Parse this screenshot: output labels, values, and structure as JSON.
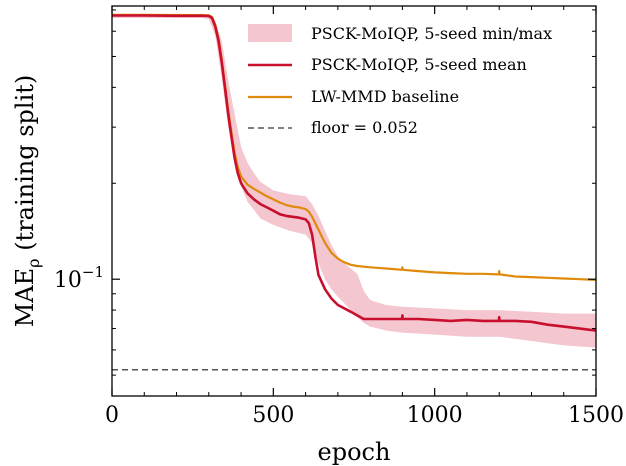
{
  "chart_data": {
    "type": "line",
    "xlabel": "epoch",
    "ylabel": "MAEρ (training split)",
    "ylabel_main": "MAE",
    "ylabel_sub": "ρ",
    "ylabel_rest": " (training split)",
    "xlim": [
      0,
      1500
    ],
    "ylim": [
      0.043,
      0.72
    ],
    "yscale": "log",
    "xticks": [
      0,
      500,
      1000,
      1500
    ],
    "xtick_labels": [
      "0",
      "500",
      "1000",
      "1500"
    ],
    "yticks_major": [
      0.1
    ],
    "ytick_major_base": "10",
    "ytick_major_exp": "−1",
    "grid": false,
    "legend_position": "top-right",
    "series": [
      {
        "name": "PSCK-MoIQP, 5-seed min/max",
        "kind": "band",
        "color": "#f4c6cf",
        "x": [
          0,
          100,
          200,
          280,
          300,
          320,
          340,
          360,
          380,
          400,
          420,
          440,
          460,
          500,
          550,
          600,
          620,
          640,
          660,
          680,
          700,
          720,
          740,
          760,
          780,
          800,
          850,
          900,
          1000,
          1100,
          1200,
          1300,
          1400,
          1500
        ],
        "lower": [
          0.66,
          0.66,
          0.66,
          0.66,
          0.655,
          0.58,
          0.43,
          0.3,
          0.24,
          0.195,
          0.175,
          0.165,
          0.155,
          0.148,
          0.142,
          0.138,
          0.13,
          0.112,
          0.1,
          0.093,
          0.088,
          0.084,
          0.08,
          0.076,
          0.073,
          0.071,
          0.069,
          0.068,
          0.067,
          0.066,
          0.066,
          0.064,
          0.062,
          0.061
        ],
        "upper": [
          0.68,
          0.68,
          0.68,
          0.68,
          0.675,
          0.64,
          0.56,
          0.42,
          0.33,
          0.26,
          0.232,
          0.215,
          0.202,
          0.19,
          0.185,
          0.182,
          0.172,
          0.158,
          0.142,
          0.128,
          0.118,
          0.112,
          0.108,
          0.104,
          0.092,
          0.086,
          0.083,
          0.082,
          0.081,
          0.08,
          0.08,
          0.079,
          0.078,
          0.078
        ]
      },
      {
        "name": "PSCK-MoIQP, 5-seed mean",
        "kind": "line",
        "color": "#c8102e",
        "x": [
          0,
          100,
          200,
          280,
          300,
          310,
          320,
          330,
          340,
          350,
          360,
          370,
          380,
          390,
          400,
          420,
          440,
          460,
          480,
          500,
          520,
          540,
          560,
          580,
          600,
          610,
          620,
          630,
          640,
          660,
          680,
          700,
          720,
          740,
          760,
          780,
          800,
          850,
          899,
          900,
          901,
          950,
          1000,
          1050,
          1100,
          1150,
          1199,
          1200,
          1201,
          1250,
          1300,
          1350,
          1400,
          1450,
          1500
        ],
        "y": [
          0.672,
          0.672,
          0.671,
          0.671,
          0.67,
          0.66,
          0.62,
          0.56,
          0.48,
          0.4,
          0.33,
          0.28,
          0.24,
          0.215,
          0.2,
          0.186,
          0.178,
          0.172,
          0.168,
          0.164,
          0.16,
          0.158,
          0.157,
          0.156,
          0.154,
          0.15,
          0.138,
          0.118,
          0.103,
          0.093,
          0.087,
          0.083,
          0.081,
          0.079,
          0.077,
          0.075,
          0.075,
          0.075,
          0.075,
          0.077,
          0.075,
          0.075,
          0.0745,
          0.074,
          0.0745,
          0.074,
          0.074,
          0.076,
          0.074,
          0.074,
          0.0735,
          0.072,
          0.071,
          0.07,
          0.069
        ]
      },
      {
        "name": "LW-MMD baseline",
        "kind": "line",
        "color": "#e08a0b",
        "x": [
          0,
          100,
          200,
          280,
          300,
          310,
          320,
          330,
          340,
          350,
          360,
          370,
          380,
          390,
          400,
          420,
          440,
          460,
          480,
          500,
          520,
          540,
          560,
          580,
          600,
          610,
          620,
          640,
          660,
          680,
          700,
          720,
          740,
          760,
          800,
          850,
          899,
          900,
          901,
          950,
          1000,
          1050,
          1100,
          1150,
          1199,
          1200,
          1201,
          1250,
          1300,
          1350,
          1400,
          1450,
          1500
        ],
        "y": [
          0.675,
          0.675,
          0.674,
          0.674,
          0.673,
          0.665,
          0.63,
          0.57,
          0.49,
          0.41,
          0.34,
          0.29,
          0.25,
          0.225,
          0.21,
          0.198,
          0.192,
          0.187,
          0.182,
          0.178,
          0.174,
          0.171,
          0.169,
          0.168,
          0.166,
          0.163,
          0.157,
          0.143,
          0.13,
          0.121,
          0.116,
          0.113,
          0.111,
          0.11,
          0.109,
          0.108,
          0.107,
          0.109,
          0.107,
          0.106,
          0.105,
          0.1045,
          0.104,
          0.104,
          0.1035,
          0.106,
          0.1035,
          0.102,
          0.1015,
          0.101,
          0.1005,
          0.1,
          0.0995
        ]
      },
      {
        "name": "floor = 0.052",
        "kind": "hline",
        "color": "#555555",
        "y": 0.052
      }
    ]
  }
}
